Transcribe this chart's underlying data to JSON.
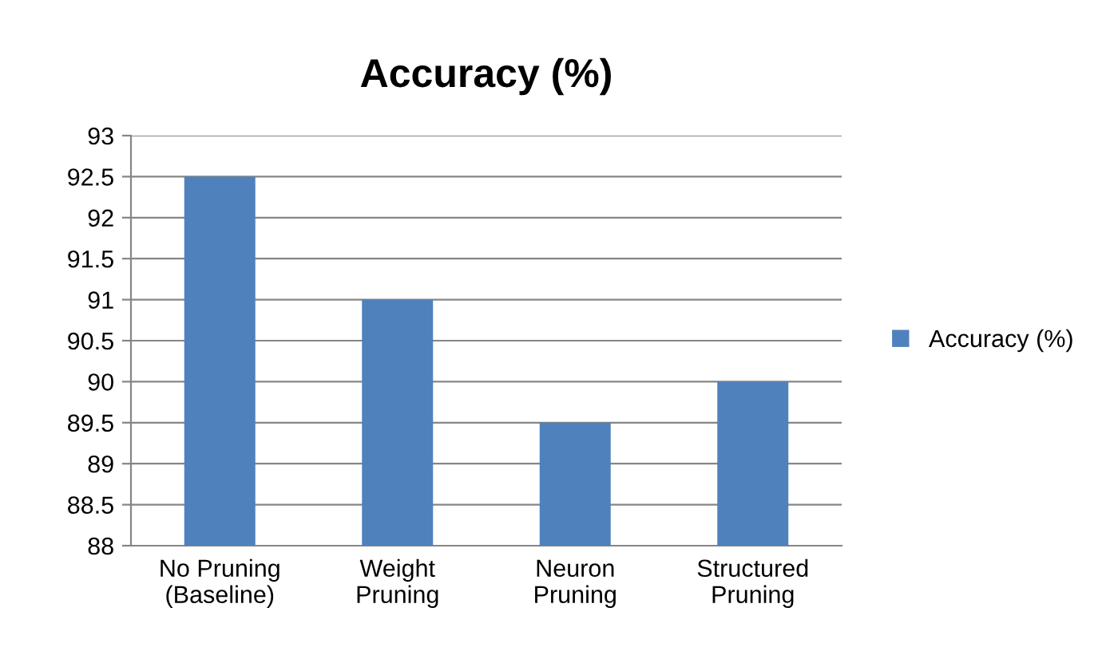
{
  "chart_data": {
    "type": "bar",
    "title": "Accuracy (%)",
    "categories": [
      "No Pruning\n(Baseline)",
      "Weight\nPruning",
      "Neuron\nPruning",
      "Structured\nPruning"
    ],
    "series": [
      {
        "name": "Accuracy (%)",
        "color": "#4f81bd",
        "values": [
          92.5,
          91,
          89.5,
          90
        ]
      }
    ],
    "ylim": [
      88,
      93
    ],
    "yticks": [
      88,
      88.5,
      89,
      89.5,
      90,
      90.5,
      91,
      91.5,
      92,
      92.5,
      93
    ],
    "grid": "y",
    "legend": "right"
  }
}
